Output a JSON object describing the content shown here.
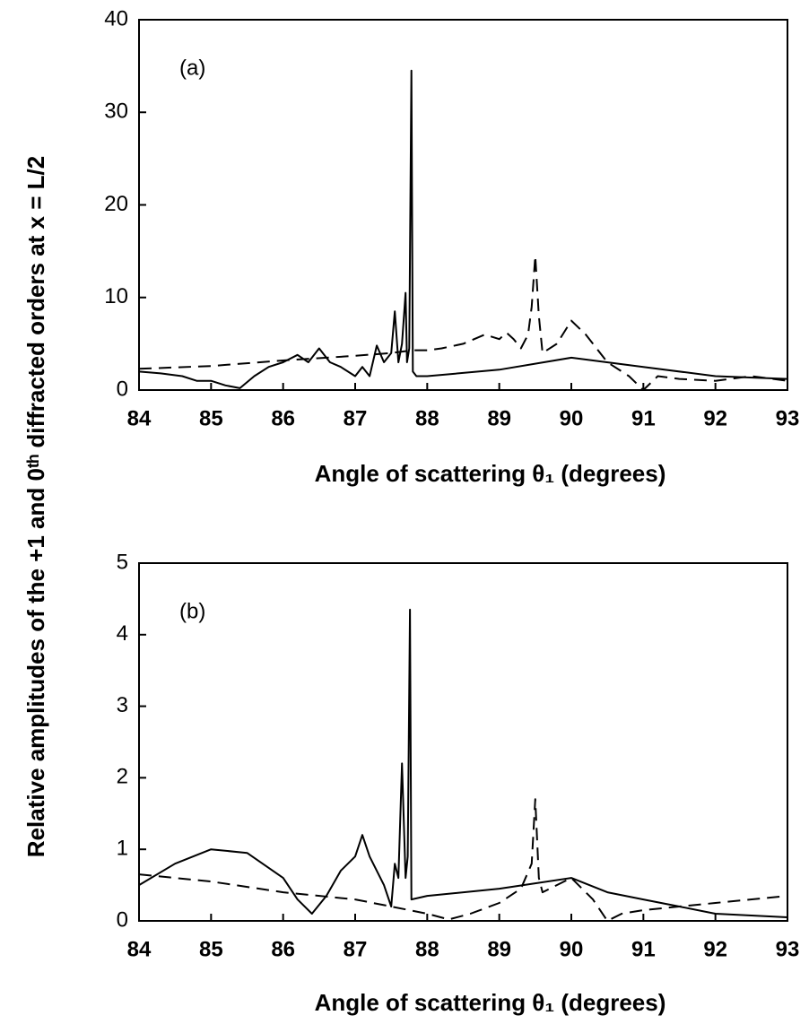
{
  "chart_data": [
    {
      "type": "line",
      "ylabel": "Relative amplitudes of the +1 and 0ᵗʰ diffracted orders at x = L/2",
      "xlabel": "Angle of scattering θ₁ (degrees)",
      "annotation": "(a)",
      "xlim": [
        84,
        93
      ],
      "xticks": [
        84,
        85,
        86,
        87,
        88,
        89,
        90,
        91,
        92,
        93
      ],
      "ylim": [
        0,
        40
      ],
      "yticks": [
        0,
        10,
        20,
        30,
        40
      ],
      "series": [
        {
          "color": "#000000",
          "style": "solid",
          "x": [
            84,
            84.3,
            84.6,
            84.8,
            85,
            85.2,
            85.4,
            85.6,
            85.8,
            86,
            86.2,
            86.35,
            86.5,
            86.65,
            86.8,
            87,
            87.1,
            87.2,
            87.3,
            87.4,
            87.5,
            87.55,
            87.6,
            87.65,
            87.7,
            87.72,
            87.75,
            87.78,
            87.8,
            87.85,
            88,
            89,
            90,
            91,
            92,
            93
          ],
          "values": [
            2,
            1.8,
            1.5,
            1,
            1,
            0.5,
            0.2,
            1.5,
            2.5,
            3,
            3.8,
            3,
            4.5,
            3,
            2.5,
            1.5,
            2.5,
            1.5,
            4.8,
            3,
            4,
            8.5,
            3,
            5,
            10.5,
            3,
            4.5,
            34.5,
            2,
            1.5,
            1.5,
            2.2,
            3.5,
            2.5,
            1.5,
            1.2
          ]
        },
        {
          "color": "#000000",
          "style": "dashed",
          "x": [
            84,
            85,
            86,
            87,
            87.5,
            87.8,
            88,
            88.2,
            88.5,
            88.8,
            89,
            89.1,
            89.2,
            89.3,
            89.4,
            89.45,
            89.5,
            89.55,
            89.6,
            89.8,
            90,
            90.2,
            90.5,
            90.8,
            91,
            91.2,
            91.5,
            92,
            92.5,
            93
          ],
          "values": [
            2.3,
            2.6,
            3.2,
            3.7,
            4,
            4.3,
            4.3,
            4.5,
            5,
            6,
            5.5,
            6.2,
            5.5,
            4.5,
            6,
            9,
            14.5,
            8,
            4,
            5,
            7.5,
            6,
            3,
            1.5,
            0,
            1.5,
            1.2,
            1,
            1.5,
            1
          ]
        }
      ]
    },
    {
      "type": "line",
      "xlabel": "Angle of scattering θ₁ (degrees)",
      "annotation": "(b)",
      "xlim": [
        84,
        93
      ],
      "xticks": [
        84,
        85,
        86,
        87,
        88,
        89,
        90,
        91,
        92,
        93
      ],
      "ylim": [
        0,
        5
      ],
      "yticks": [
        0,
        1,
        2,
        3,
        4,
        5
      ],
      "series": [
        {
          "color": "#000000",
          "style": "solid",
          "x": [
            84,
            84.5,
            85,
            85.5,
            86,
            86.2,
            86.4,
            86.6,
            86.8,
            87,
            87.1,
            87.2,
            87.4,
            87.5,
            87.55,
            87.6,
            87.65,
            87.7,
            87.73,
            87.76,
            87.78,
            88,
            89,
            90,
            90.5,
            91,
            91.5,
            92,
            93
          ],
          "values": [
            0.5,
            0.8,
            1.0,
            0.95,
            0.6,
            0.3,
            0.1,
            0.35,
            0.7,
            0.9,
            1.2,
            0.9,
            0.5,
            0.2,
            0.8,
            0.6,
            2.2,
            0.6,
            0.9,
            4.35,
            0.3,
            0.35,
            0.45,
            0.6,
            0.4,
            0.3,
            0.2,
            0.1,
            0.05
          ]
        },
        {
          "color": "#000000",
          "style": "dashed",
          "x": [
            84,
            85,
            86,
            87,
            87.5,
            88,
            88.3,
            88.6,
            89,
            89.3,
            89.45,
            89.5,
            89.55,
            89.6,
            90,
            90.3,
            90.5,
            90.7,
            91,
            92,
            93
          ],
          "values": [
            0.65,
            0.55,
            0.4,
            0.3,
            0.2,
            0.1,
            0.02,
            0.1,
            0.25,
            0.45,
            0.8,
            1.7,
            0.6,
            0.4,
            0.6,
            0.3,
            0.0,
            0.1,
            0.15,
            0.25,
            0.35
          ]
        }
      ]
    }
  ]
}
